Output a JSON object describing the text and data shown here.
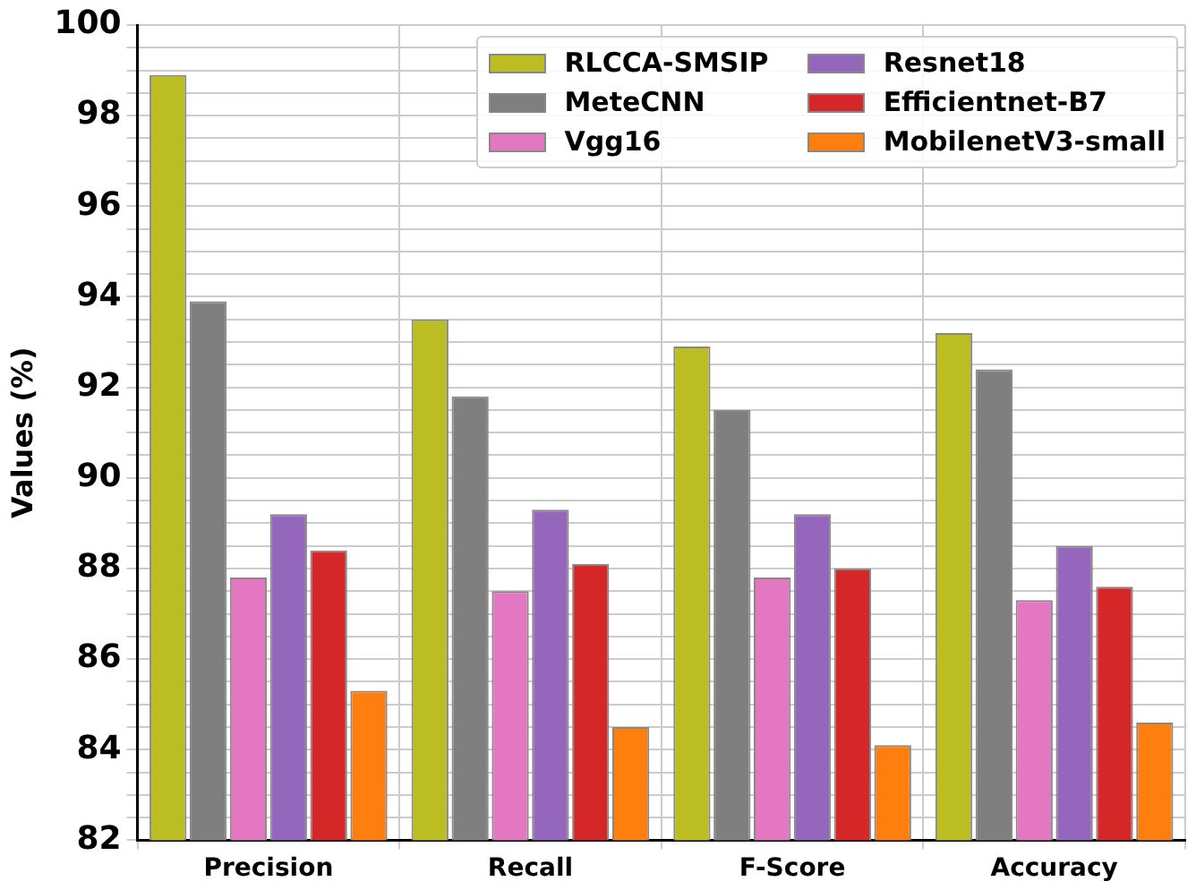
{
  "chart_data": {
    "type": "bar",
    "ylabel": "Values (%)",
    "categories": [
      "Precision",
      "Recall",
      "F-Score",
      "Accuracy"
    ],
    "series": [
      {
        "name": "RLCCA-SMSIP",
        "color": "#bcbd22",
        "values": [
          98.9,
          93.5,
          92.9,
          93.2
        ]
      },
      {
        "name": "MeteCNN",
        "color": "#7f7f7f",
        "values": [
          93.9,
          91.8,
          91.5,
          92.4
        ]
      },
      {
        "name": "Vgg16",
        "color": "#e377c2",
        "values": [
          87.8,
          87.5,
          87.8,
          87.3
        ]
      },
      {
        "name": "Resnet18",
        "color": "#9467bd",
        "values": [
          89.2,
          89.3,
          89.2,
          88.5
        ]
      },
      {
        "name": "Efficientnet-B7",
        "color": "#d62728",
        "values": [
          88.4,
          88.1,
          88.0,
          87.6
        ]
      },
      {
        "name": "MobilenetV3-small",
        "color": "#ff7f0e",
        "values": [
          85.3,
          84.5,
          84.1,
          84.6
        ]
      }
    ],
    "ylim": [
      82,
      100
    ],
    "yticks": [
      82,
      {
        "value": 82.5,
        "label": null
      },
      {
        "value": 83,
        "label": null
      },
      {
        "value": 83.5,
        "label": null
      },
      84,
      {
        "value": 84.5,
        "label": null
      },
      {
        "value": 85,
        "label": null
      },
      {
        "value": 85.5,
        "label": null
      },
      86,
      {
        "value": 86.5,
        "label": null
      },
      {
        "value": 87,
        "label": null
      },
      {
        "value": 87.5,
        "label": null
      },
      88,
      {
        "value": 88.5,
        "label": null
      },
      {
        "value": 89,
        "label": null
      },
      {
        "value": 89.5,
        "label": null
      },
      90,
      {
        "value": 90.5,
        "label": null
      },
      {
        "value": 91,
        "label": null
      },
      {
        "value": 91.5,
        "label": null
      },
      92,
      {
        "value": 92.5,
        "label": null
      },
      {
        "value": 93,
        "label": null
      },
      {
        "value": 93.5,
        "label": null
      },
      94,
      {
        "value": 94.5,
        "label": null
      },
      {
        "value": 95,
        "label": null
      },
      {
        "value": 95.5,
        "label": null
      },
      96,
      {
        "value": 96.5,
        "label": null
      },
      {
        "value": 97,
        "label": null
      },
      {
        "value": 97.5,
        "label": null
      },
      98,
      {
        "value": 98.5,
        "label": null
      },
      {
        "value": 99,
        "label": null
      },
      {
        "value": 99.5,
        "label": null
      },
      100
    ],
    "grid": true,
    "legend": "top right"
  }
}
